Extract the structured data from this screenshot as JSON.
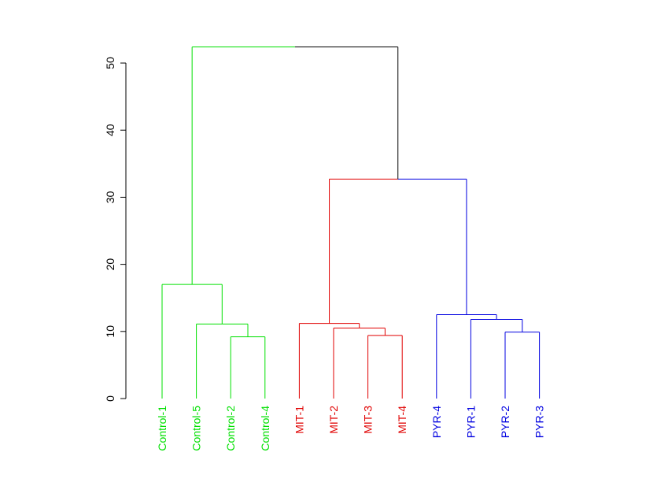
{
  "chart_data": {
    "type": "dendrogram",
    "title": "",
    "xlabel": "",
    "ylabel": "",
    "ylim": [
      0,
      52
    ],
    "yticks": [
      0,
      10,
      20,
      30,
      40,
      50
    ],
    "ytick_labels": [
      "0",
      "10",
      "20",
      "30",
      "40",
      "50"
    ],
    "grid": false,
    "leaves": [
      {
        "label": "Control-1",
        "group": "control"
      },
      {
        "label": "Control-5",
        "group": "control"
      },
      {
        "label": "Control-2",
        "group": "control"
      },
      {
        "label": "Control-4",
        "group": "control"
      },
      {
        "label": "MIT-1",
        "group": "mit"
      },
      {
        "label": "MIT-2",
        "group": "mit"
      },
      {
        "label": "MIT-3",
        "group": "mit"
      },
      {
        "label": "MIT-4",
        "group": "mit"
      },
      {
        "label": "PYR-4",
        "group": "pyr"
      },
      {
        "label": "PYR-1",
        "group": "pyr"
      },
      {
        "label": "PYR-2",
        "group": "pyr"
      },
      {
        "label": "PYR-3",
        "group": "pyr"
      }
    ],
    "merges": [
      {
        "left": "Control-2",
        "right": "Control-4",
        "height": 9.2,
        "group": "control"
      },
      {
        "left": "Control-5",
        "right": 0,
        "height": 11.1,
        "group": "control"
      },
      {
        "left": "Control-1",
        "right": 1,
        "height": 17.0,
        "group": "control"
      },
      {
        "left": "MIT-3",
        "right": "MIT-4",
        "height": 9.4,
        "group": "mit"
      },
      {
        "left": "MIT-2",
        "right": 3,
        "height": 10.5,
        "group": "mit"
      },
      {
        "left": "MIT-1",
        "right": 4,
        "height": 11.2,
        "group": "mit"
      },
      {
        "left": "PYR-2",
        "right": "PYR-3",
        "height": 9.9,
        "group": "pyr"
      },
      {
        "left": "PYR-1",
        "right": 6,
        "height": 11.8,
        "group": "pyr"
      },
      {
        "left": "PYR-4",
        "right": 7,
        "height": 12.5,
        "group": "pyr"
      },
      {
        "left": 5,
        "right": 8,
        "height": 32.7,
        "group": "mixed"
      },
      {
        "left": 2,
        "right": 9,
        "height": 52.4,
        "group": "mixed"
      }
    ],
    "colors": {
      "control": "#00e000",
      "mit": "#e00000",
      "pyr": "#0000e0",
      "mixed": "#000000",
      "axis": "#000000"
    }
  }
}
